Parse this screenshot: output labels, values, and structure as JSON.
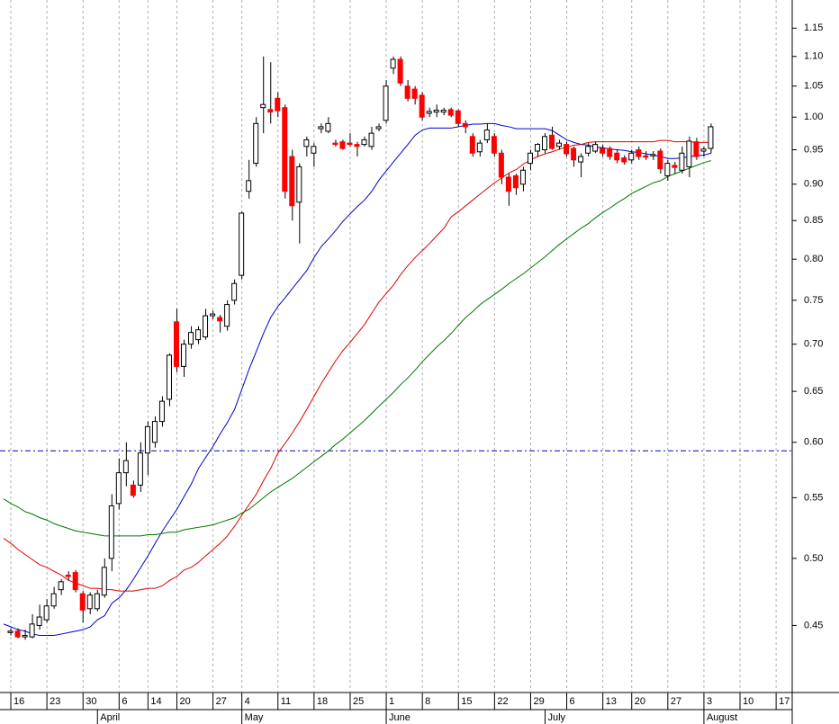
{
  "chart_data": {
    "type": "candlestick",
    "log_scale": true,
    "ylim": [
      0.405,
      1.202
    ],
    "yticks": [
      0.45,
      {
        "value": 0.5,
        "label": "0.50"
      },
      0.55,
      {
        "value": 0.6,
        "label": "0.60"
      },
      0.65,
      {
        "value": 0.7,
        "label": "0.70"
      },
      0.75,
      {
        "value": 0.8,
        "label": "0.80"
      },
      0.85,
      {
        "value": 0.9,
        "label": "0.90"
      },
      0.95,
      {
        "value": 1.0,
        "label": "1.00"
      },
      1.05,
      {
        "value": 1.1,
        "label": "1.10"
      },
      1.15
    ],
    "categories": [
      null,
      "16",
      null,
      null,
      null,
      null,
      "23",
      null,
      null,
      null,
      null,
      "30",
      null,
      null,
      null,
      null,
      "6",
      null,
      null,
      null,
      "14",
      null,
      null,
      null,
      "20",
      null,
      null,
      null,
      null,
      "27",
      null,
      null,
      null,
      "4",
      null,
      null,
      null,
      null,
      "11",
      null,
      null,
      null,
      null,
      "18",
      null,
      null,
      null,
      null,
      "25",
      null,
      null,
      null,
      null,
      "1",
      null,
      null,
      null,
      null,
      "8",
      null,
      null,
      null,
      null,
      "15",
      null,
      null,
      null,
      null,
      "22",
      null,
      null,
      null,
      null,
      "29",
      null,
      null,
      null,
      null,
      "6",
      null,
      null,
      null,
      null,
      "13",
      null,
      null,
      null,
      "20",
      null,
      null,
      null,
      null,
      "27",
      null,
      null,
      null,
      null,
      "3",
      null,
      null,
      null,
      null,
      "10",
      null,
      null,
      null,
      null,
      "17",
      null,
      null
    ],
    "month_labels": [
      null,
      null,
      null,
      null,
      null,
      null,
      null,
      null,
      null,
      null,
      null,
      null,
      null,
      "April",
      null,
      null,
      null,
      null,
      null,
      null,
      null,
      null,
      null,
      null,
      null,
      null,
      null,
      null,
      null,
      null,
      null,
      null,
      null,
      "May",
      null,
      null,
      null,
      null,
      null,
      null,
      null,
      null,
      null,
      null,
      null,
      null,
      null,
      null,
      null,
      null,
      null,
      null,
      null,
      "June",
      null,
      null,
      null,
      null,
      null,
      null,
      null,
      null,
      null,
      null,
      null,
      null,
      null,
      null,
      null,
      null,
      null,
      null,
      null,
      null,
      null,
      "July",
      null,
      null,
      null,
      null,
      null,
      null,
      null,
      null,
      null,
      null,
      null,
      null,
      null,
      null,
      null,
      null,
      null,
      null,
      null,
      null,
      null,
      "August",
      null,
      null,
      null,
      null,
      null,
      null,
      null,
      null,
      null,
      null,
      null,
      null
    ],
    "up_color": "#ffffff",
    "down_color": "#ff0000",
    "wick_color": "#000000",
    "ohlc": [
      null,
      [
        0.445,
        0.448,
        0.443,
        0.446
      ],
      [
        0.446,
        0.448,
        0.441,
        0.442
      ],
      [
        0.442,
        0.447,
        0.44,
        0.443
      ],
      [
        0.442,
        0.458,
        0.441,
        0.451
      ],
      [
        0.45,
        0.465,
        0.447,
        0.456
      ],
      [
        0.454,
        0.469,
        0.452,
        0.464
      ],
      [
        0.464,
        0.478,
        0.462,
        0.473
      ],
      [
        0.476,
        0.484,
        0.472,
        0.482
      ],
      [
        0.487,
        0.49,
        0.483,
        0.486
      ],
      [
        0.489,
        0.491,
        0.474,
        0.476
      ],
      [
        0.473,
        0.475,
        0.452,
        0.461
      ],
      [
        0.462,
        0.474,
        0.458,
        0.472
      ],
      [
        0.462,
        0.476,
        0.46,
        0.473
      ],
      [
        0.472,
        0.5,
        0.47,
        0.493
      ],
      [
        0.5,
        0.553,
        0.49,
        0.543
      ],
      [
        0.545,
        0.585,
        0.54,
        0.572
      ],
      [
        0.572,
        0.6,
        0.56,
        0.583
      ],
      [
        0.561,
        0.565,
        0.55,
        0.552
      ],
      [
        0.561,
        0.6,
        0.555,
        0.59
      ],
      [
        0.59,
        0.62,
        0.57,
        0.615
      ],
      [
        0.6,
        0.625,
        0.595,
        0.62
      ],
      [
        0.62,
        0.645,
        0.615,
        0.64
      ],
      [
        0.642,
        0.69,
        0.635,
        0.688
      ],
      [
        0.725,
        0.74,
        0.67,
        0.676
      ],
      [
        0.676,
        0.705,
        0.665,
        0.7
      ],
      [
        0.7,
        0.72,
        0.695,
        0.713
      ],
      [
        0.705,
        0.72,
        0.7,
        0.716
      ],
      [
        0.708,
        0.74,
        0.705,
        0.732
      ],
      [
        0.732,
        0.738,
        0.728,
        0.734
      ],
      [
        0.73,
        0.733,
        0.713,
        0.726
      ],
      [
        0.72,
        0.75,
        0.715,
        0.745
      ],
      [
        0.75,
        0.775,
        0.745,
        0.77
      ],
      [
        0.78,
        0.862,
        0.775,
        0.86
      ],
      [
        0.89,
        0.935,
        0.88,
        0.905
      ],
      [
        0.93,
        1.0,
        0.925,
        0.99
      ],
      [
        1.015,
        1.1,
        0.975,
        1.02
      ],
      [
        1.012,
        1.09,
        0.99,
        1.008
      ],
      [
        1.03,
        1.04,
        1.0,
        1.01
      ],
      [
        1.015,
        1.02,
        0.88,
        0.89
      ],
      [
        0.94,
        0.95,
        0.85,
        0.87
      ],
      [
        0.875,
        0.93,
        0.82,
        0.925
      ],
      [
        0.955,
        0.97,
        0.94,
        0.965
      ],
      [
        0.945,
        0.96,
        0.925,
        0.955
      ],
      [
        0.982,
        0.99,
        0.975,
        0.985
      ],
      [
        0.978,
        1.0,
        0.975,
        0.99
      ],
      [
        0.96,
        0.965,
        0.955,
        0.958
      ],
      [
        0.962,
        0.965,
        0.95,
        0.952
      ],
      [
        0.96,
        0.975,
        0.955,
        0.958
      ],
      [
        0.958,
        0.962,
        0.94,
        0.955
      ],
      [
        0.958,
        0.97,
        0.955,
        0.965
      ],
      [
        0.955,
        0.985,
        0.95,
        0.975
      ],
      [
        0.982,
        0.99,
        0.978,
        0.985
      ],
      [
        0.995,
        1.06,
        0.99,
        1.05
      ],
      [
        1.08,
        1.1,
        1.07,
        1.095
      ],
      [
        1.095,
        1.1,
        1.05,
        1.055
      ],
      [
        1.05,
        1.06,
        1.025,
        1.03
      ],
      [
        1.045,
        1.05,
        1.02,
        1.03
      ],
      [
        1.035,
        1.04,
        0.995,
        1.0
      ],
      [
        1.006,
        1.015,
        1.0,
        1.009
      ],
      [
        1.008,
        1.02,
        1.0,
        1.011
      ],
      [
        1.008,
        1.015,
        1.003,
        1.011
      ],
      [
        1.012,
        1.015,
        1.0,
        1.003
      ],
      [
        1.01,
        1.012,
        0.985,
        0.99
      ],
      [
        0.99,
        0.995,
        0.975,
        0.985
      ],
      [
        0.97,
        0.975,
        0.94,
        0.945
      ],
      [
        0.947,
        0.965,
        0.94,
        0.96
      ],
      [
        0.965,
        0.99,
        0.96,
        0.98
      ],
      [
        0.97,
        0.975,
        0.94,
        0.945
      ],
      [
        0.945,
        0.95,
        0.9,
        0.91
      ],
      [
        0.91,
        0.915,
        0.87,
        0.89
      ],
      [
        0.912,
        0.915,
        0.885,
        0.895
      ],
      [
        0.9,
        0.925,
        0.89,
        0.92
      ],
      [
        0.93,
        0.95,
        0.92,
        0.945
      ],
      [
        0.948,
        0.96,
        0.94,
        0.958
      ],
      [
        0.95,
        0.975,
        0.945,
        0.97
      ],
      [
        0.972,
        0.985,
        0.95,
        0.952
      ],
      [
        0.955,
        0.965,
        0.95,
        0.96
      ],
      [
        0.958,
        0.962,
        0.94,
        0.944
      ],
      [
        0.952,
        0.955,
        0.925,
        0.935
      ],
      [
        0.932,
        0.945,
        0.91,
        0.94
      ],
      [
        0.945,
        0.96,
        0.94,
        0.955
      ],
      [
        0.948,
        0.962,
        0.945,
        0.958
      ],
      [
        0.952,
        0.958,
        0.94,
        0.945
      ],
      [
        0.952,
        0.955,
        0.935,
        0.94
      ],
      [
        0.945,
        0.95,
        0.93,
        0.935
      ],
      [
        0.938,
        0.942,
        0.928,
        0.932
      ],
      [
        0.935,
        0.95,
        0.93,
        0.945
      ],
      [
        0.95,
        0.955,
        0.935,
        0.94
      ],
      [
        0.941,
        0.948,
        0.935,
        0.939
      ],
      [
        0.941,
        0.948,
        0.935,
        0.943
      ],
      [
        0.948,
        0.952,
        0.915,
        0.922
      ],
      [
        0.912,
        0.935,
        0.905,
        0.93
      ],
      [
        0.927,
        0.932,
        0.915,
        0.924
      ],
      [
        0.92,
        0.955,
        0.915,
        0.945
      ],
      [
        0.925,
        0.97,
        0.91,
        0.963
      ],
      [
        0.962,
        0.968,
        0.935,
        0.94
      ],
      [
        0.948,
        0.955,
        0.94,
        0.951
      ],
      [
        0.952,
        0.99,
        0.945,
        0.985
      ],
      null,
      null,
      null,
      null,
      null,
      null,
      null,
      null,
      null,
      null,
      null
    ],
    "series": [
      {
        "color": "#0000cc",
        "values": [
          0.451,
          0.449,
          0.447,
          0.446,
          0.444,
          0.443,
          0.443,
          0.443,
          0.444,
          0.445,
          0.446,
          0.447,
          0.449,
          0.454,
          0.457,
          0.466,
          0.47,
          0.476,
          0.484,
          0.493,
          0.502,
          0.512,
          0.522,
          0.531,
          0.54,
          0.551,
          0.562,
          0.576,
          0.586,
          0.596,
          0.608,
          0.619,
          0.632,
          0.652,
          0.673,
          0.692,
          0.712,
          0.73,
          0.743,
          0.753,
          0.764,
          0.775,
          0.786,
          0.802,
          0.816,
          0.826,
          0.837,
          0.849,
          0.859,
          0.869,
          0.878,
          0.89,
          0.906,
          0.919,
          0.932,
          0.945,
          0.958,
          0.972,
          0.98,
          0.983,
          0.983,
          0.983,
          0.983,
          0.985,
          0.987,
          0.989,
          0.989,
          0.99,
          0.99,
          0.987,
          0.985,
          0.982,
          0.982,
          0.982,
          0.982,
          0.982,
          0.979,
          0.972,
          0.965,
          0.961,
          0.958,
          0.957,
          0.954,
          0.953,
          0.951,
          0.95,
          0.949,
          0.947,
          0.946,
          0.944,
          0.942,
          0.94,
          0.937,
          0.937,
          0.938,
          0.94,
          0.941,
          0.942,
          0.945,
          null,
          null,
          null,
          null,
          null,
          null,
          null,
          null,
          null,
          null,
          null
        ]
      },
      {
        "color": "#dd0000",
        "values": [
          0.516,
          0.512,
          0.507,
          0.503,
          0.499,
          0.495,
          0.493,
          0.49,
          0.487,
          0.483,
          0.481,
          0.479,
          0.477,
          0.477,
          0.476,
          0.476,
          0.475,
          0.475,
          0.475,
          0.476,
          0.477,
          0.477,
          0.479,
          0.483,
          0.486,
          0.491,
          0.493,
          0.497,
          0.502,
          0.507,
          0.512,
          0.518,
          0.526,
          0.535,
          0.544,
          0.553,
          0.565,
          0.576,
          0.59,
          0.599,
          0.609,
          0.62,
          0.632,
          0.645,
          0.658,
          0.67,
          0.682,
          0.693,
          0.702,
          0.712,
          0.722,
          0.735,
          0.748,
          0.758,
          0.768,
          0.781,
          0.792,
          0.802,
          0.811,
          0.82,
          0.83,
          0.84,
          0.855,
          0.862,
          0.87,
          0.878,
          0.886,
          0.894,
          0.902,
          0.909,
          0.916,
          0.921,
          0.929,
          0.935,
          0.94,
          0.944,
          0.947,
          0.951,
          0.954,
          0.957,
          0.958,
          0.961,
          0.962,
          0.962,
          0.962,
          0.962,
          0.962,
          0.962,
          0.962,
          0.962,
          0.962,
          0.964,
          0.964,
          0.962,
          0.962,
          0.962,
          0.961,
          0.961,
          0.961,
          null,
          null,
          null,
          null,
          null,
          null,
          null,
          null,
          null,
          null,
          null
        ]
      },
      {
        "color": "#007700",
        "values": [
          0.549,
          0.545,
          0.542,
          0.538,
          0.536,
          0.533,
          0.531,
          0.528,
          0.526,
          0.524,
          0.522,
          0.521,
          0.52,
          0.519,
          0.518,
          0.518,
          0.518,
          0.518,
          0.518,
          0.518,
          0.519,
          0.519,
          0.52,
          0.521,
          0.521,
          0.523,
          0.524,
          0.525,
          0.526,
          0.527,
          0.529,
          0.531,
          0.533,
          0.537,
          0.54,
          0.545,
          0.55,
          0.555,
          0.559,
          0.563,
          0.567,
          0.572,
          0.577,
          0.582,
          0.587,
          0.592,
          0.598,
          0.603,
          0.609,
          0.615,
          0.621,
          0.628,
          0.635,
          0.642,
          0.649,
          0.657,
          0.664,
          0.672,
          0.681,
          0.689,
          0.697,
          0.704,
          0.712,
          0.721,
          0.73,
          0.737,
          0.745,
          0.751,
          0.757,
          0.763,
          0.77,
          0.776,
          0.782,
          0.789,
          0.796,
          0.803,
          0.811,
          0.819,
          0.826,
          0.833,
          0.84,
          0.846,
          0.854,
          0.861,
          0.867,
          0.874,
          0.88,
          0.887,
          0.892,
          0.897,
          0.902,
          0.905,
          0.911,
          0.915,
          0.919,
          0.923,
          0.927,
          0.931,
          0.934,
          null,
          null,
          null,
          null,
          null,
          null,
          null,
          null,
          null,
          null,
          null
        ]
      }
    ],
    "hline": {
      "value": 0.592,
      "color": "#0000cc"
    }
  }
}
